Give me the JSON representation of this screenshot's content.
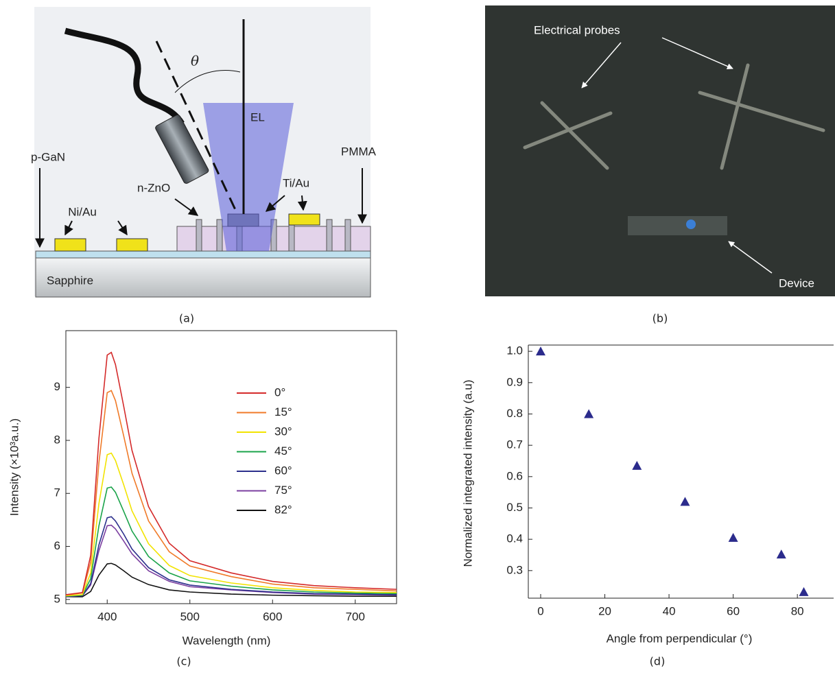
{
  "diagram": {
    "labels": {
      "p_gan": "p-GaN",
      "ni_au": "Ni/Au",
      "n_zno": "n-ZnO",
      "ti_au": "Ti/Au",
      "pmma": "PMMA",
      "el": "EL",
      "sapphire": "Sapphire",
      "theta": "θ"
    },
    "caption": "(a)"
  },
  "photo": {
    "labels": {
      "probes": "Electrical probes",
      "device": "Device"
    },
    "caption": "(b)"
  },
  "chart_data": [
    {
      "type": "line",
      "caption": "(c)",
      "x_label": "Wavelength (nm)",
      "y_label": "Intensity (×10³a.u.)",
      "x": [
        350,
        370,
        380,
        390,
        400,
        405,
        410,
        420,
        430,
        450,
        475,
        500,
        550,
        600,
        650,
        700,
        750
      ],
      "series": [
        {
          "name": "0°",
          "color": "#d42a2a",
          "values": [
            5.09,
            5.13,
            5.83,
            8.04,
            9.61,
            9.66,
            9.43,
            8.64,
            7.81,
            6.75,
            6.06,
            5.73,
            5.5,
            5.34,
            5.26,
            5.22,
            5.19
          ]
        },
        {
          "name": "15°",
          "color": "#f07a28",
          "values": [
            5.08,
            5.12,
            5.7,
            7.58,
            8.9,
            8.94,
            8.75,
            8.08,
            7.38,
            6.48,
            5.9,
            5.63,
            5.43,
            5.29,
            5.22,
            5.19,
            5.16
          ]
        },
        {
          "name": "30°",
          "color": "#f2e300",
          "values": [
            5.07,
            5.09,
            5.5,
            6.81,
            7.73,
            7.76,
            7.62,
            7.16,
            6.67,
            6.05,
            5.64,
            5.45,
            5.31,
            5.22,
            5.17,
            5.14,
            5.13
          ]
        },
        {
          "name": "45°",
          "color": "#1aa34a",
          "values": [
            5.06,
            5.08,
            5.39,
            6.39,
            7.1,
            7.12,
            7.02,
            6.66,
            6.29,
            5.81,
            5.5,
            5.35,
            5.25,
            5.18,
            5.14,
            5.12,
            5.11
          ]
        },
        {
          "name": "60°",
          "color": "#2c2f8c",
          "values": [
            5.06,
            5.07,
            5.3,
            6.03,
            6.54,
            6.56,
            6.48,
            6.23,
            5.95,
            5.6,
            5.37,
            5.27,
            5.19,
            5.14,
            5.11,
            5.1,
            5.09
          ]
        },
        {
          "name": "75°",
          "color": "#7b3fa0",
          "values": [
            5.05,
            5.07,
            5.27,
            5.92,
            6.39,
            6.4,
            6.33,
            6.1,
            5.86,
            5.54,
            5.34,
            5.24,
            5.18,
            5.13,
            5.1,
            5.09,
            5.08
          ]
        },
        {
          "name": "82°",
          "color": "#111111",
          "values": [
            5.05,
            5.05,
            5.15,
            5.46,
            5.67,
            5.68,
            5.65,
            5.54,
            5.42,
            5.28,
            5.18,
            5.14,
            5.1,
            5.08,
            5.07,
            5.06,
            5.06
          ]
        }
      ],
      "xlim": [
        350,
        750
      ],
      "xticks": [
        400,
        500,
        600,
        700
      ],
      "ylim": [
        4.92,
        10.07
      ],
      "yticks": [
        5,
        6,
        7,
        8,
        9
      ]
    },
    {
      "type": "scatter",
      "caption": "(d)",
      "x_label": "Angle from perpendicular (°)",
      "y_label": "Normalized integrated intensity (a.u)",
      "x": [
        0,
        15,
        30,
        45,
        60,
        75,
        82
      ],
      "values": [
        1.0,
        0.8,
        0.635,
        0.52,
        0.405,
        0.352,
        0.232
      ],
      "color": "#2b2b8c",
      "xlim": [
        -3.85,
        91.3
      ],
      "xticks": [
        0,
        20,
        40,
        60,
        80
      ],
      "ylim": [
        0.212,
        1.02
      ],
      "yticks": [
        0.3,
        0.4,
        0.5,
        0.6,
        0.7,
        0.8,
        0.9,
        {
          "value": 1,
          "label": "1.0"
        }
      ]
    }
  ]
}
